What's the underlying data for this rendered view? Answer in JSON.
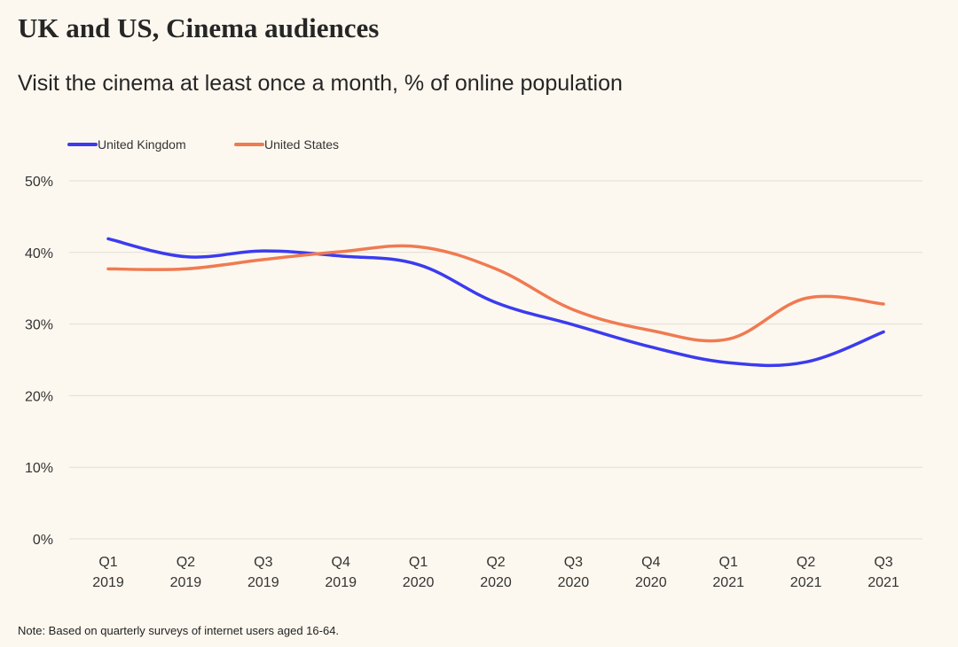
{
  "title": "UK and US, Cinema audiences",
  "subtitle": "Visit the cinema at least once a month, % of online population",
  "note": "Note: Based on quarterly surveys of internet users aged 16-64.",
  "colors": {
    "background": "#fdf8ef",
    "gridline": "#e3ded5",
    "united_kingdom": "#3b3bf0",
    "united_states": "#f07a52"
  },
  "chart_data": {
    "type": "line",
    "categories": [
      [
        "Q1",
        "2019"
      ],
      [
        "Q2",
        "2019"
      ],
      [
        "Q3",
        "2019"
      ],
      [
        "Q4",
        "2019"
      ],
      [
        "Q1",
        "2020"
      ],
      [
        "Q2",
        "2020"
      ],
      [
        "Q3",
        "2020"
      ],
      [
        "Q4",
        "2020"
      ],
      [
        "Q1",
        "2021"
      ],
      [
        "Q2",
        "2021"
      ],
      [
        "Q3",
        "2021"
      ]
    ],
    "series": [
      {
        "name": "United Kingdom",
        "color": "#3b3bf0",
        "values": [
          41.9,
          39.4,
          40.2,
          39.5,
          38.3,
          33.0,
          29.9,
          26.8,
          24.6,
          24.7,
          28.9
        ]
      },
      {
        "name": "United States",
        "color": "#f07a52",
        "values": [
          37.7,
          37.7,
          39.0,
          40.1,
          40.8,
          37.7,
          32.0,
          29.1,
          27.9,
          33.6,
          32.8
        ]
      }
    ],
    "yticks": [
      "0%",
      "10%",
      "20%",
      "30%",
      "40%",
      "50%"
    ],
    "ylim": [
      0,
      50
    ],
    "grid": true,
    "legend_position": "top-left",
    "smooth": true
  }
}
